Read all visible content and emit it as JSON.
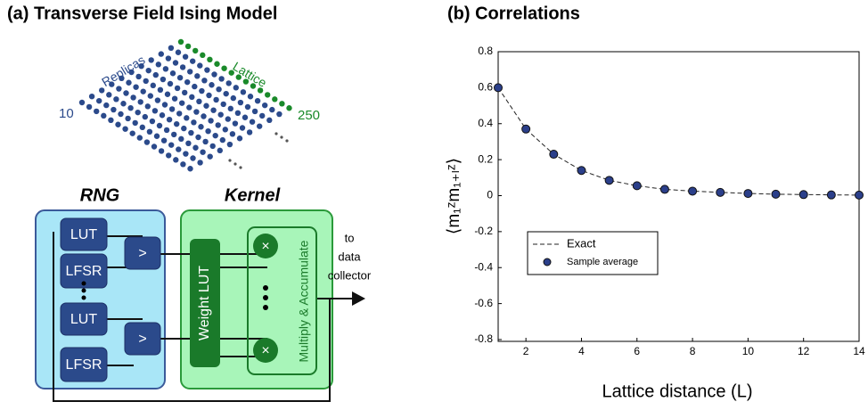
{
  "diagram": {
    "title": "(a) Transverse Field Ising Model",
    "replicas_label": "Replicas",
    "lattice_label": "Lattice",
    "replicas_count": "10",
    "lattice_count": "250",
    "rng_label": "RNG",
    "kernel_label": "Kernel",
    "rng_blocks": [
      "LUT",
      "LFSR",
      "LUT",
      "LFSR"
    ],
    "comparators": [
      ">",
      ">"
    ],
    "weight_lut": "Weight LUT",
    "multipliers": [
      "×",
      "×"
    ],
    "mac_label": "Multiply & Accumulate",
    "output_label": [
      "to",
      "data",
      "collector"
    ]
  },
  "chart_data": {
    "type": "line",
    "title": "(b) Correlations",
    "x_label": "Lattice distance (L)",
    "y_label": "⟨m₁ᶻm₁₊ₗᶻ⟩",
    "x": [
      1,
      2,
      3,
      4,
      5,
      6,
      7,
      8,
      9,
      10,
      11,
      12,
      13,
      14
    ],
    "series": [
      {
        "name": "Exact",
        "color": "#222222",
        "style": "dashed",
        "values": [
          0.6,
          0.37,
          0.23,
          0.14,
          0.085,
          0.055,
          0.035,
          0.025,
          0.018,
          0.012,
          0.008,
          0.006,
          0.004,
          0.003
        ]
      },
      {
        "name": "Sample average",
        "color": "#2b3f8a",
        "style": "markers",
        "values": [
          0.6,
          0.37,
          0.23,
          0.14,
          0.085,
          0.055,
          0.035,
          0.025,
          0.018,
          0.012,
          0.008,
          0.006,
          0.004,
          0.003
        ]
      }
    ],
    "xlim": [
      1,
      14
    ],
    "xticks": [
      2,
      4,
      6,
      8,
      10,
      12,
      14
    ],
    "ylim": [
      -0.81,
      0.8
    ],
    "yticks": [
      0.8,
      0.6,
      0.4,
      0.2,
      0,
      -0.2,
      -0.4,
      -0.6,
      -0.8
    ],
    "legend": "lower-left"
  }
}
